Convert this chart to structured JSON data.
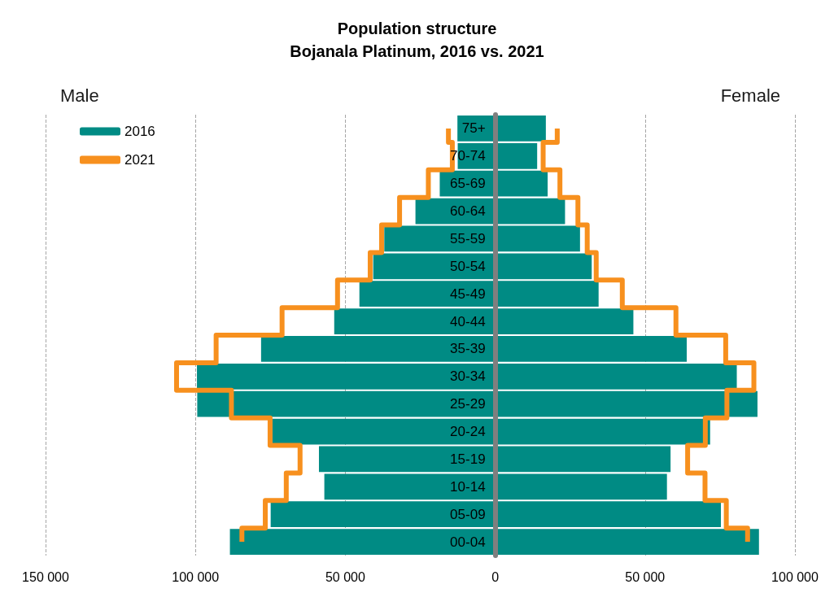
{
  "chart_data": {
    "type": "bar",
    "orientation": "horizontal",
    "stacked": true,
    "title": "Population structure",
    "subtitle": "Bojanala Platinum, 2016 vs. 2021",
    "categories": [
      "75+",
      "70-74",
      "65-69",
      "60-64",
      "55-59",
      "50-54",
      "45-49",
      "40-44",
      "35-39",
      "30-34",
      "25-29",
      "20-24",
      "15-19",
      "10-14",
      "05-09",
      "00-04"
    ],
    "series": [
      {
        "name": "2016",
        "color": "#008b84",
        "values": [
          -12600,
          -12500,
          -18500,
          -26600,
          -37000,
          -40700,
          -45300,
          -53700,
          -78100,
          -99500,
          -99400,
          -74400,
          -58800,
          -57000,
          -74900,
          -88500
        ]
      },
      {
        "color": "#008b84",
        "values": [
          16900,
          14000,
          17500,
          23300,
          28300,
          32200,
          34500,
          46100,
          63900,
          80600,
          87500,
          71700,
          58500,
          57300,
          75300,
          88000
        ]
      },
      {
        "name": "2021",
        "type": "step",
        "color": "#f7901e",
        "values": [
          -15600,
          -14300,
          -22300,
          -31900,
          -37900,
          -41700,
          -52600,
          -71100,
          -93100,
          -106300,
          -88000,
          -75100,
          -65100,
          -69700,
          -76700,
          -84500
        ]
      },
      {
        "type": "step",
        "color": "#f7901e",
        "values": [
          20700,
          16000,
          21600,
          27600,
          30700,
          33700,
          42400,
          60300,
          76900,
          86300,
          77300,
          70100,
          64200,
          70000,
          77100,
          84200
        ]
      }
    ],
    "xlim": [
      -150000,
      100000
    ],
    "xticks": [
      {
        "value": -150000,
        "label": "150 000"
      },
      {
        "value": -100000,
        "label": "100 000"
      },
      {
        "value": -50000,
        "label": "50 000"
      },
      0,
      {
        "value": 50000,
        "label": "50 000"
      },
      {
        "value": 100000,
        "label": "100 000"
      }
    ],
    "grid": "x",
    "legend": "top left",
    "annotations": [
      "Male",
      "Female"
    ]
  }
}
